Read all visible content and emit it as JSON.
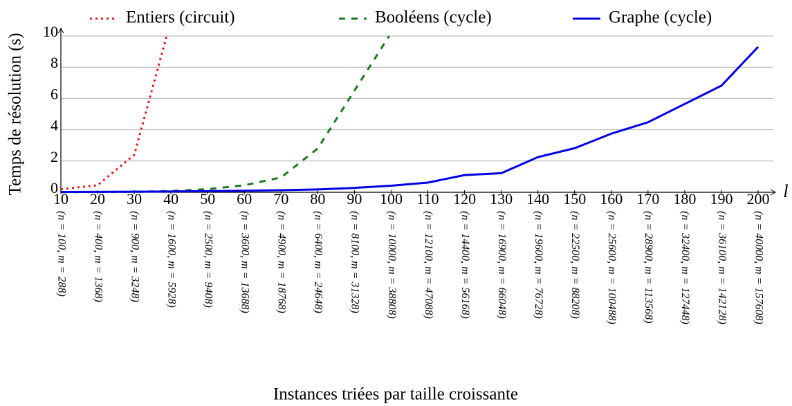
{
  "chart_data": {
    "type": "line",
    "x_label": "Instances triées par taille croissante",
    "y_label": "Temps de résolution (s)",
    "x_axis_symbol": "l",
    "x": [
      10,
      20,
      30,
      40,
      50,
      60,
      70,
      80,
      90,
      100,
      110,
      120,
      130,
      140,
      150,
      160,
      170,
      180,
      190,
      200
    ],
    "xlim": [
      10,
      200
    ],
    "xticks": [
      10,
      20,
      30,
      40,
      50,
      60,
      70,
      80,
      90,
      100,
      110,
      120,
      130,
      140,
      150,
      160,
      170,
      180,
      190,
      200
    ],
    "xtick_sublabels": [
      "(n = 100, m = 288)",
      "(n = 400, m = 1368)",
      "(n = 900, m = 3248)",
      "(n = 1600, m = 5928)",
      "(n = 2500, m = 9408)",
      "(n = 3600, m = 13688)",
      "(n = 4900, m = 18768)",
      "(n = 6400, m = 24648)",
      "(n = 8100, m = 31328)",
      "(n = 10000, m = 38808)",
      "(n = 12100, m = 47088)",
      "(n = 14400, m = 56168)",
      "(n = 16900, m = 66048)",
      "(n = 19600, m = 76728)",
      "(n = 22500, m = 88208)",
      "(n = 25600, m = 100488)",
      "(n = 28900, m = 113568)",
      "(n = 32400, m = 127448)",
      "(n = 36100, m = 142128)",
      "(n = 40000, m = 157608)"
    ],
    "ylim": [
      0,
      10
    ],
    "yticks": [
      0,
      2,
      4,
      6,
      8,
      10
    ],
    "grid": true,
    "series": [
      {
        "name": "Entiers (circuit)",
        "color": "#e41a1c",
        "dash": "dotted",
        "values": [
          0.2,
          0.45,
          2.4,
          11,
          null,
          null,
          null,
          null,
          null,
          null,
          null,
          null,
          null,
          null,
          null,
          null,
          null,
          null,
          null,
          null
        ]
      },
      {
        "name": "Booléens (cycle)",
        "color": "#1a7a1a",
        "dash": "dashed",
        "values": [
          0.01,
          0.02,
          0.03,
          0.08,
          0.2,
          0.45,
          0.95,
          2.8,
          6.5,
          10.2,
          null,
          null,
          null,
          null,
          null,
          null,
          null,
          null,
          null,
          null
        ]
      },
      {
        "name": "Graphe (cycle)",
        "color": "#0000e6",
        "dash": "solid",
        "values": [
          0.02,
          0.03,
          0.04,
          0.05,
          0.07,
          0.1,
          0.13,
          0.18,
          0.28,
          0.42,
          0.62,
          1.1,
          1.22,
          2.25,
          2.82,
          3.75,
          4.48,
          5.65,
          6.82,
          9.3
        ]
      }
    ]
  }
}
